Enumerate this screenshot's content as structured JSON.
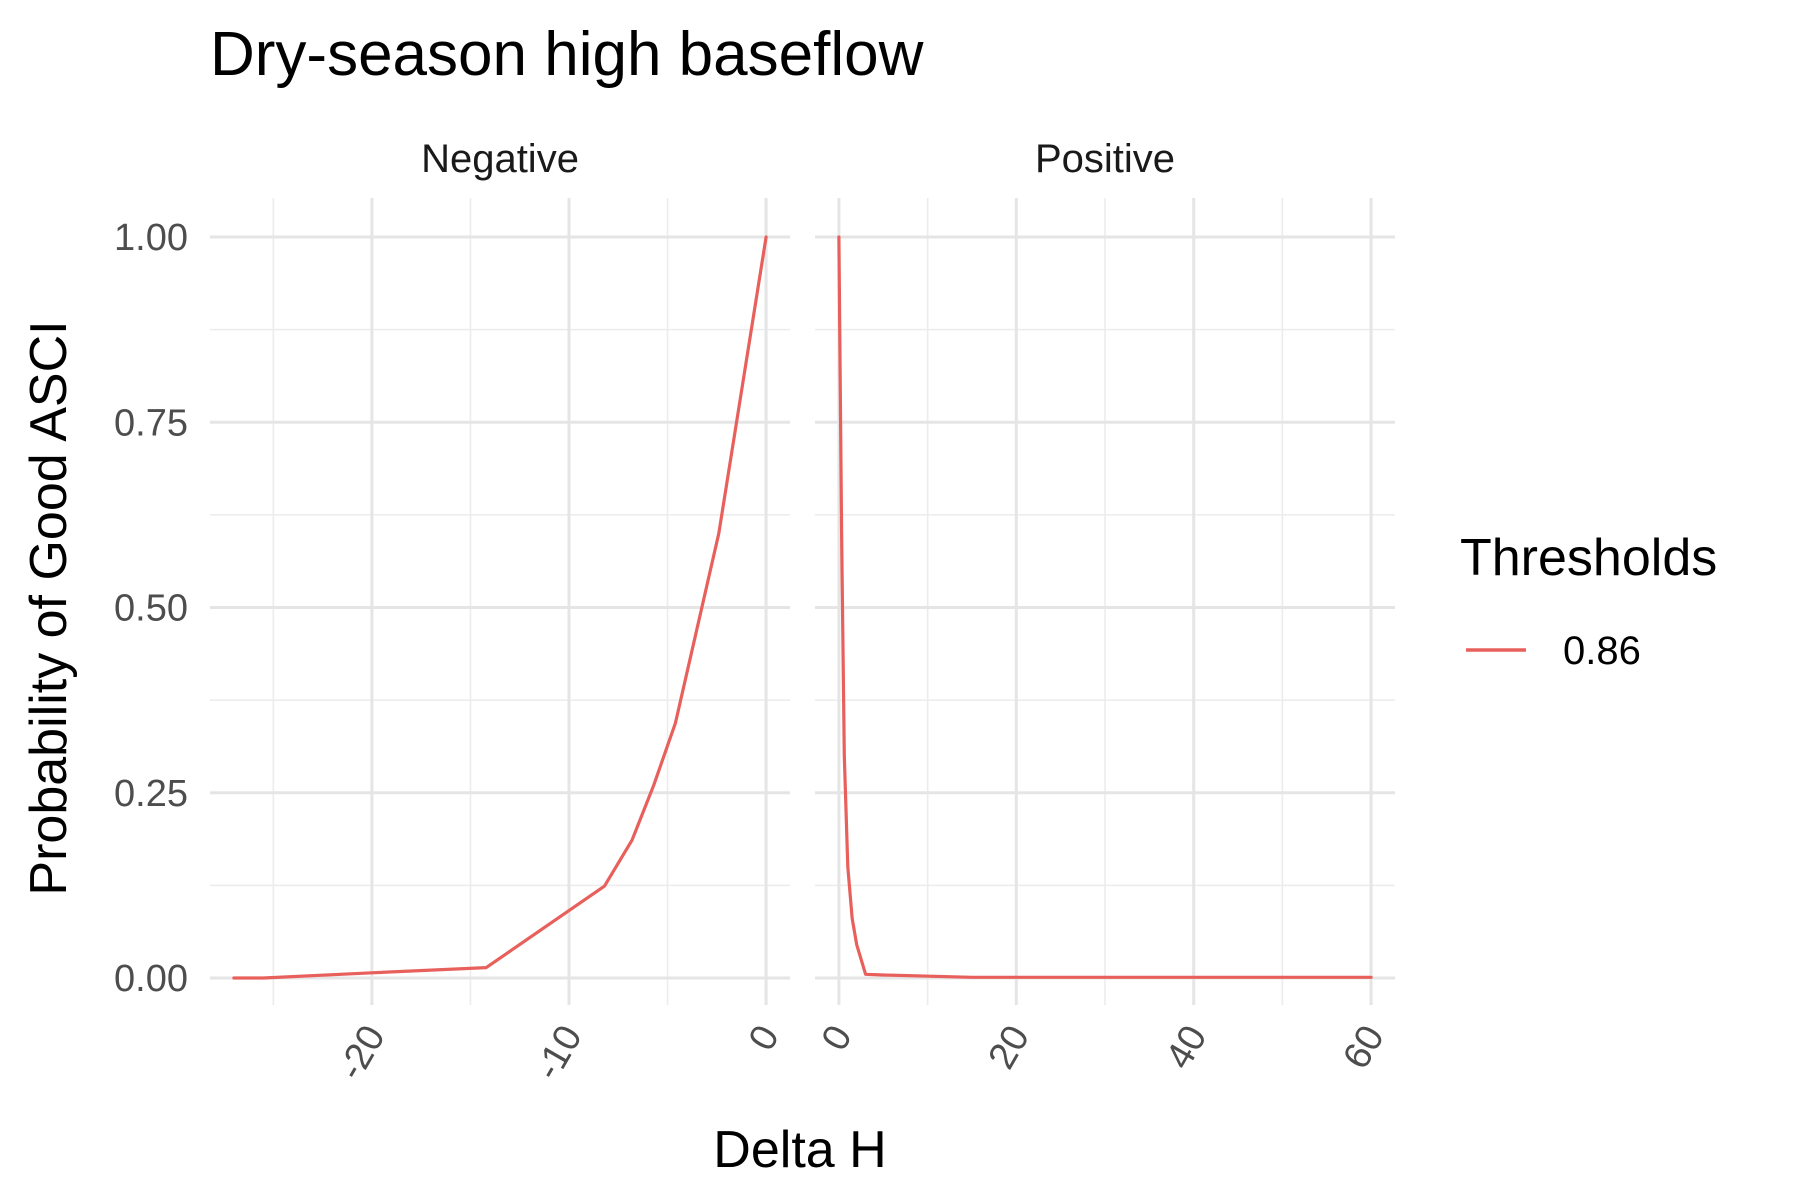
{
  "chart_data": {
    "type": "line",
    "title": "Dry-season high baseflow",
    "xlabel": "Delta H",
    "ylabel": "Probability of Good ASCI",
    "ylim": [
      0,
      1
    ],
    "y_ticks": [
      "0.00",
      "0.25",
      "0.50",
      "0.75",
      "1.00"
    ],
    "legend": {
      "title": "Thresholds",
      "position": "right"
    },
    "series": [
      {
        "name": "0.86",
        "color": "#e8605c"
      }
    ],
    "panels": [
      {
        "label": "Negative",
        "xlim": [
          -27,
          0
        ],
        "x_ticks": [
          -20,
          -10,
          0
        ],
        "x_tick_labels": [
          "-20",
          "-10",
          "0"
        ],
        "x": [
          -27,
          -25.5,
          -20,
          -14.2,
          -8.2,
          -6.8,
          -5.7,
          -4.6,
          -2.4,
          0
        ],
        "y": [
          0.0,
          0.0,
          0.007,
          0.014,
          0.124,
          0.186,
          0.26,
          0.344,
          0.6,
          1.0
        ]
      },
      {
        "label": "Positive",
        "xlim": [
          0,
          60
        ],
        "x_ticks": [
          0,
          20,
          40,
          60
        ],
        "x_tick_labels": [
          "0",
          "20",
          "40",
          "60"
        ],
        "x": [
          0,
          0.3,
          0.6,
          1.0,
          1.5,
          2.0,
          3.0,
          5.0,
          15.0,
          30.0,
          45.0,
          60.0
        ],
        "y": [
          1.0,
          0.6,
          0.3,
          0.15,
          0.08,
          0.045,
          0.005,
          0.004,
          0.001,
          0.001,
          0.001,
          0.001
        ]
      }
    ]
  }
}
